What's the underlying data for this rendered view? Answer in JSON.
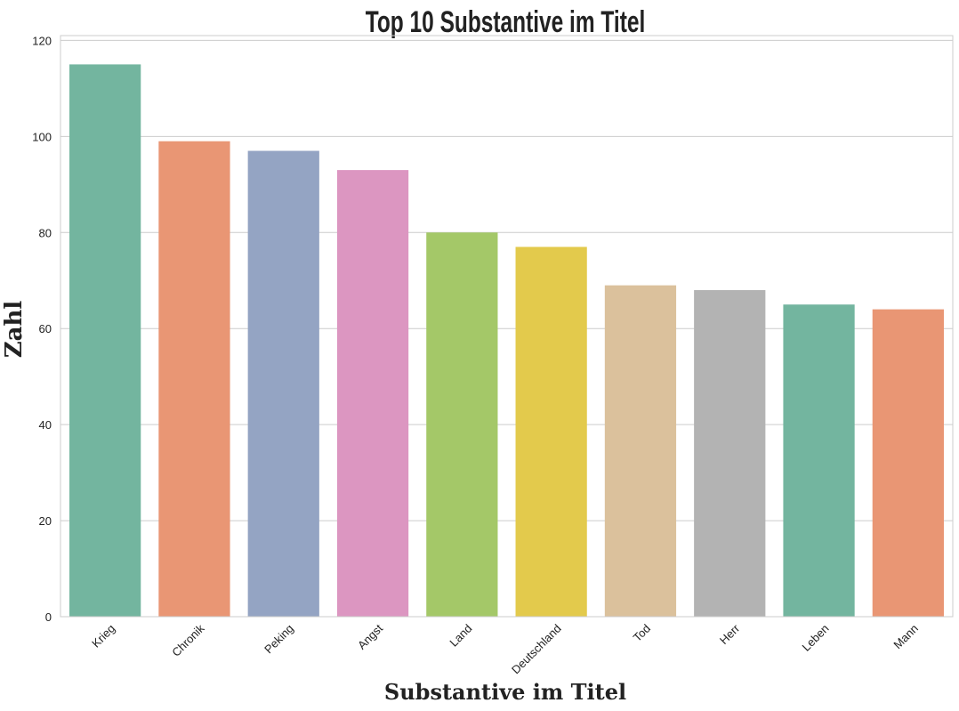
{
  "chart_data": {
    "type": "bar",
    "title": "Top 10 Substantive im Titel",
    "xlabel": "Substantive im Titel",
    "ylabel": "Zahl",
    "categories": [
      "Krieg",
      "Chronik",
      "Peking",
      "Angst",
      "Land",
      "Deutschland",
      "Tod",
      "Herr",
      "Leben",
      "Mann"
    ],
    "values": [
      115,
      99,
      97,
      93,
      80,
      77,
      69,
      68,
      65,
      64
    ],
    "colors": [
      "#73b59f",
      "#e99674",
      "#94a4c3",
      "#dc96c1",
      "#a4c868",
      "#e3ca4c",
      "#dbc19c",
      "#b3b3b3",
      "#73b59f",
      "#e99674"
    ],
    "ylim": [
      0,
      121
    ],
    "yticks": [
      0,
      20,
      40,
      60,
      80,
      100,
      120
    ],
    "grid": "horizontal",
    "legend": "none"
  }
}
